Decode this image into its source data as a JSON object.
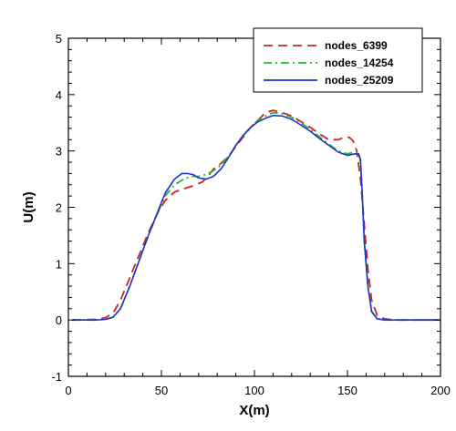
{
  "chart_data": {
    "type": "line",
    "title": "",
    "xlabel": "X(m)",
    "ylabel": "U(m)",
    "xlim": [
      0,
      200
    ],
    "ylim": [
      -1,
      5
    ],
    "xticks": [
      0,
      50,
      100,
      150,
      200
    ],
    "yticks": [
      -1,
      0,
      1,
      2,
      3,
      4,
      5
    ],
    "xtick_labels": [
      "0",
      "50",
      "100",
      "150",
      "200"
    ],
    "ytick_labels": [
      "-1",
      "0",
      "1",
      "2",
      "3",
      "4",
      "5"
    ],
    "grid": false,
    "legend_position": "top-right",
    "series": [
      {
        "name": "nodes_6399",
        "color": "#cc2222",
        "dash": "dashed",
        "x": [
          2,
          15,
          20,
          24,
          28,
          33,
          38,
          43,
          48,
          52,
          57,
          62,
          67,
          72,
          75,
          78,
          82,
          86,
          90,
          94,
          98,
          102,
          106,
          110,
          115,
          120,
          125,
          130,
          135,
          140,
          145,
          149,
          151,
          153,
          155,
          157,
          159,
          161,
          163,
          166,
          170,
          176,
          200
        ],
        "y": [
          0,
          0.01,
          0.04,
          0.12,
          0.35,
          0.75,
          1.15,
          1.55,
          1.9,
          2.12,
          2.27,
          2.33,
          2.38,
          2.45,
          2.55,
          2.68,
          2.78,
          2.9,
          3.08,
          3.25,
          3.42,
          3.55,
          3.68,
          3.72,
          3.68,
          3.62,
          3.52,
          3.42,
          3.3,
          3.2,
          3.2,
          3.25,
          3.24,
          3.18,
          3.0,
          2.5,
          1.7,
          0.9,
          0.35,
          0.08,
          0.02,
          0,
          0
        ]
      },
      {
        "name": "nodes_14254",
        "color": "#22bb22",
        "dash": "dashdot",
        "x": [
          2,
          15,
          20,
          24,
          28,
          33,
          38,
          43,
          48,
          52,
          57,
          62,
          66,
          70,
          74,
          78,
          82,
          86,
          90,
          94,
          98,
          102,
          106,
          110,
          115,
          120,
          125,
          130,
          135,
          140,
          145,
          150,
          154,
          156,
          157,
          158,
          159,
          161,
          163,
          166,
          170,
          176,
          200
        ],
        "y": [
          0,
          0,
          0.01,
          0.05,
          0.2,
          0.6,
          1.05,
          1.5,
          1.9,
          2.2,
          2.4,
          2.5,
          2.55,
          2.55,
          2.58,
          2.65,
          2.75,
          2.9,
          3.1,
          3.28,
          3.42,
          3.55,
          3.62,
          3.68,
          3.66,
          3.6,
          3.5,
          3.38,
          3.25,
          3.12,
          3.0,
          2.95,
          2.98,
          2.97,
          2.8,
          2.2,
          1.4,
          0.6,
          0.15,
          0.02,
          0,
          0,
          0
        ]
      },
      {
        "name": "nodes_25209",
        "color": "#2233cc",
        "dash": "solid",
        "x": [
          2,
          15,
          20,
          24,
          28,
          33,
          38,
          43,
          48,
          52,
          57,
          61,
          64,
          67,
          70,
          74,
          78,
          82,
          86,
          90,
          94,
          98,
          102,
          106,
          110,
          115,
          120,
          125,
          130,
          135,
          140,
          145,
          150,
          154,
          156,
          157,
          158,
          159,
          161,
          163,
          166,
          170,
          176,
          200
        ],
        "y": [
          0,
          0,
          0.01,
          0.05,
          0.2,
          0.6,
          1.05,
          1.5,
          1.92,
          2.25,
          2.5,
          2.6,
          2.6,
          2.58,
          2.52,
          2.5,
          2.55,
          2.68,
          2.88,
          3.1,
          3.28,
          3.42,
          3.52,
          3.58,
          3.63,
          3.62,
          3.56,
          3.46,
          3.35,
          3.22,
          3.1,
          2.98,
          2.92,
          2.95,
          2.95,
          2.85,
          2.2,
          1.4,
          0.6,
          0.15,
          0.02,
          0,
          0,
          0
        ]
      }
    ]
  }
}
